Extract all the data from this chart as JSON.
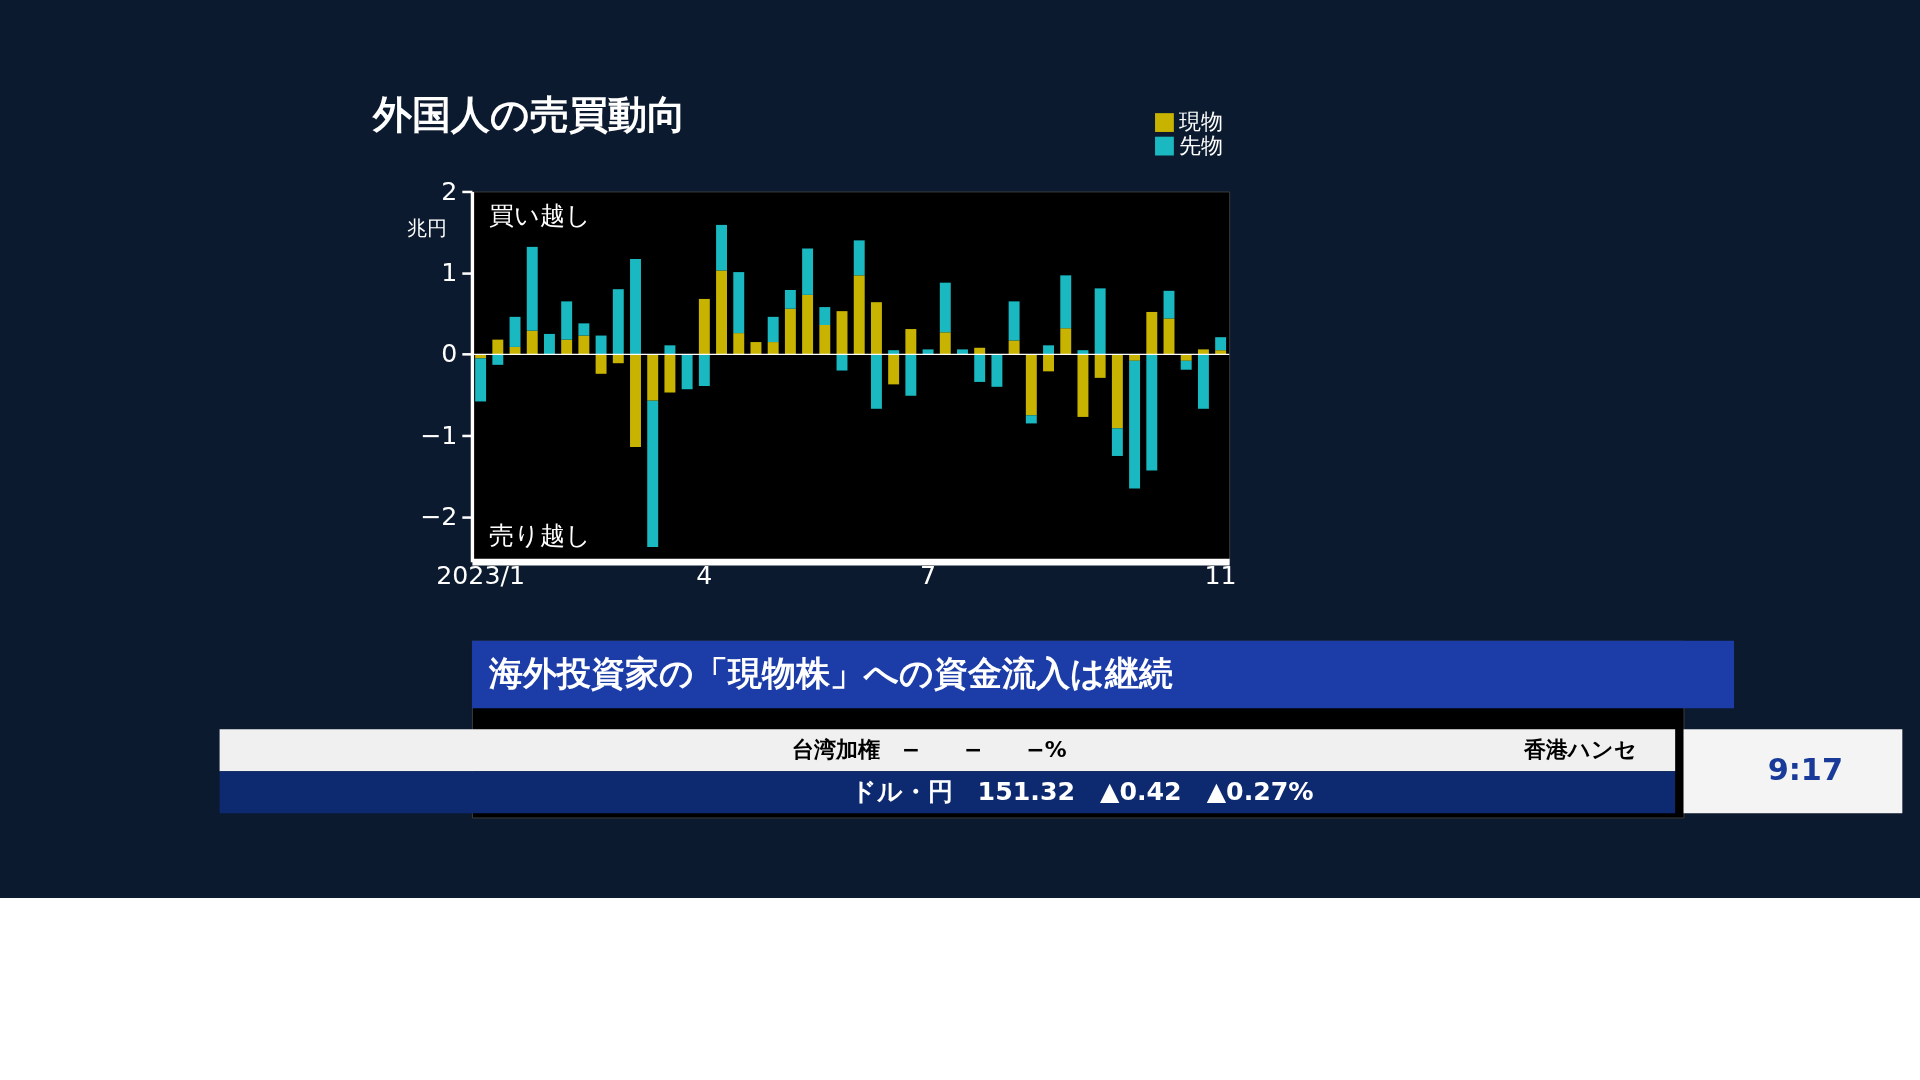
{
  "chart_data": {
    "type": "bar",
    "title": "外国人の売買動向",
    "ylabel": "兆円",
    "stacked": true,
    "categories": [
      "2023/1",
      null,
      null,
      null,
      null,
      null,
      null,
      null,
      null,
      null,
      null,
      null,
      null,
      "4",
      null,
      null,
      null,
      null,
      null,
      null,
      null,
      null,
      null,
      null,
      null,
      null,
      "7",
      null,
      null,
      null,
      null,
      null,
      null,
      null,
      null,
      null,
      null,
      null,
      null,
      null,
      null,
      null,
      null,
      "11"
    ],
    "series": [
      {
        "name": "現物",
        "color": "#c8b400",
        "values": [
          -0.05,
          0.18,
          0.09,
          0.29,
          0,
          0.18,
          0.23,
          -0.24,
          -0.11,
          -1.14,
          -0.57,
          -0.47,
          0,
          0.68,
          1.03,
          0.26,
          0.15,
          0.15,
          0.56,
          0.73,
          0.36,
          0.53,
          0.97,
          0.64,
          -0.37,
          0.31,
          0,
          0.27,
          0,
          0.08,
          0,
          0.17,
          -0.75,
          -0.21,
          0.32,
          -0.77,
          -0.29,
          -0.91,
          -0.08,
          0.52,
          0.44,
          -0.08,
          0.06,
          0.05
        ]
      },
      {
        "name": "先物",
        "color": "#1ab8c0",
        "values": [
          -0.53,
          -0.13,
          0.37,
          1.03,
          0.25,
          0.47,
          0.15,
          0.23,
          0.8,
          1.17,
          -1.8,
          0.11,
          -0.43,
          -0.39,
          0.56,
          0.75,
          0,
          0.31,
          0.23,
          0.57,
          0.22,
          -0.2,
          0.43,
          -0.67,
          0.05,
          -0.51,
          0.06,
          0.61,
          0.06,
          -0.34,
          -0.4,
          0.48,
          -0.1,
          0.11,
          0.65,
          0.05,
          0.81,
          -0.34,
          -1.57,
          -1.43,
          0.34,
          -0.11,
          -0.67,
          0.16
        ]
      }
    ],
    "ylim": [
      -2.55,
      2
    ],
    "yticks": [
      2,
      1,
      0,
      {
        "value": -1,
        "label": "−1"
      },
      {
        "value": -2,
        "label": "−2"
      }
    ],
    "ref_lines": [
      {
        "axis": "y",
        "value": 0,
        "color": "#ffffff"
      }
    ],
    "grid": false,
    "legend": "top right",
    "annotations": [
      "買い越し",
      "売り越し",
      "海外投資家の「現物株」への資金流入は継続",
      "台湾加権　−　　−　　−%",
      "香港ハンセ",
      "ドル・円　151.32　▲0.42　▲0.27%",
      "9:17"
    ]
  }
}
